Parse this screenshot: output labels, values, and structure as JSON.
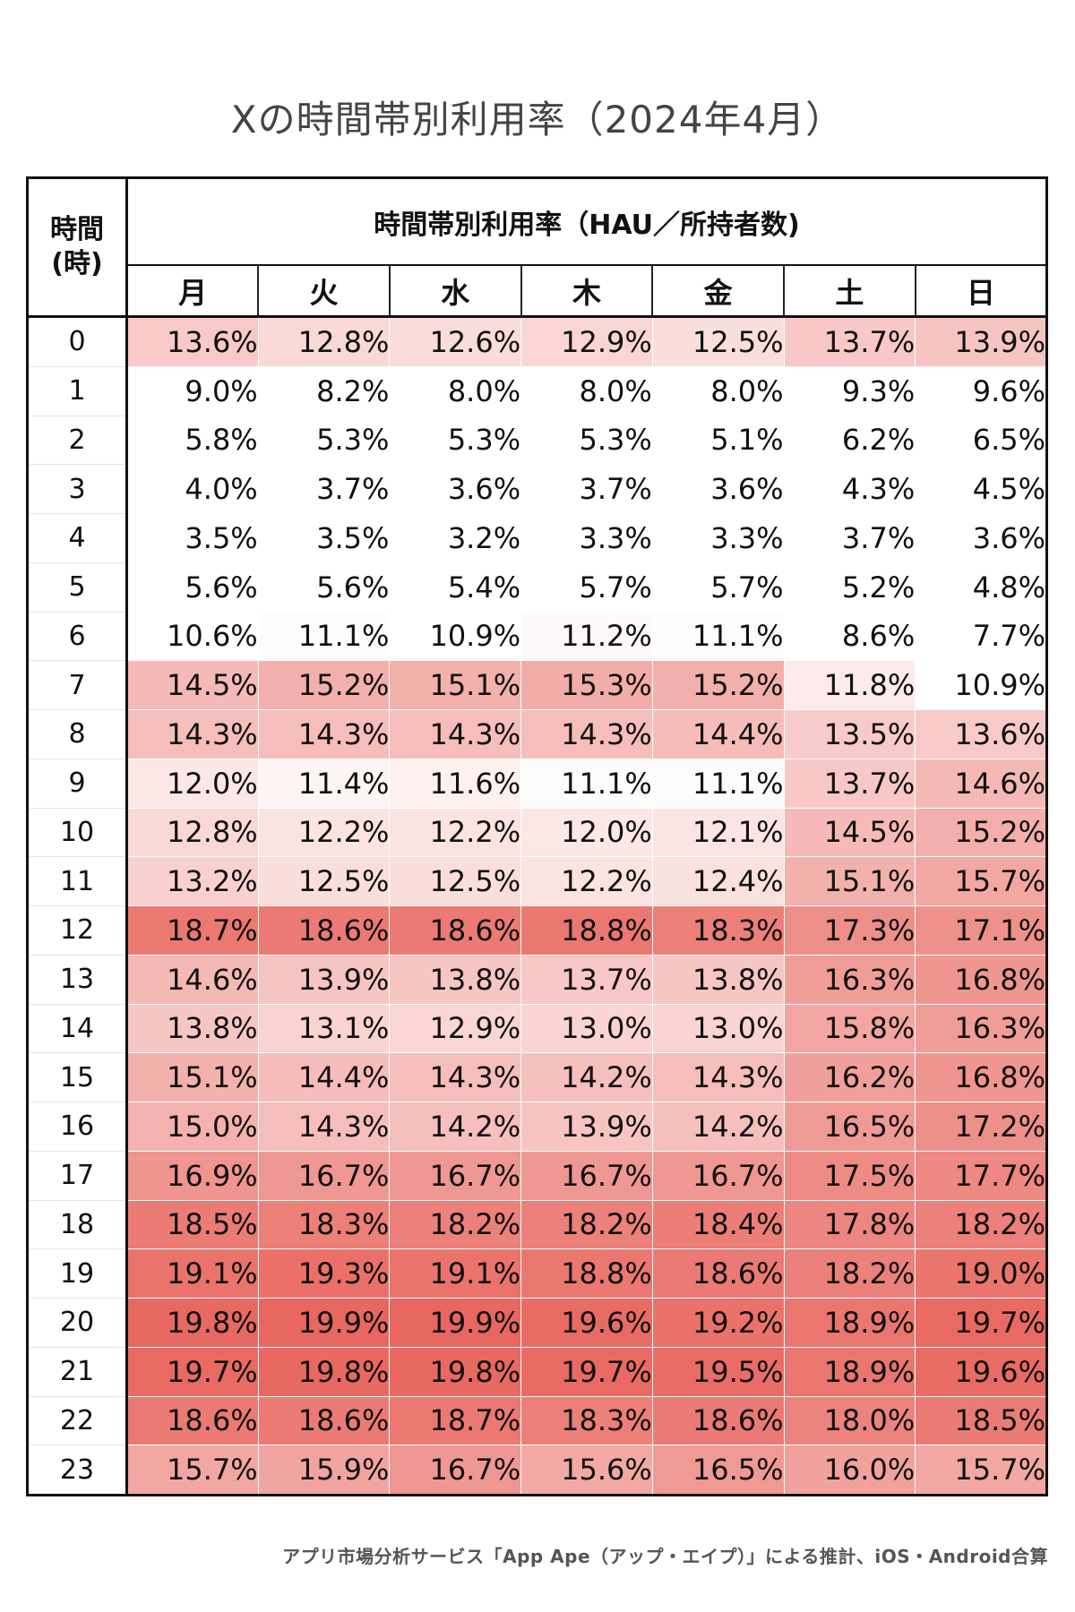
{
  "chart_data": {
    "type": "heatmap",
    "title": "Xの時間帯別利用率（2024年4月）",
    "row_header": "時間\n(時)",
    "column_group_header": "時間帯別利用率（HAU／所持者数)",
    "columns": [
      "月",
      "火",
      "水",
      "木",
      "金",
      "土",
      "日"
    ],
    "rows": [
      "0",
      "1",
      "2",
      "3",
      "4",
      "5",
      "6",
      "7",
      "8",
      "9",
      "10",
      "11",
      "12",
      "13",
      "14",
      "15",
      "16",
      "17",
      "18",
      "19",
      "20",
      "21",
      "22",
      "23"
    ],
    "unit": "%",
    "values": [
      [
        13.6,
        12.8,
        12.6,
        12.9,
        12.5,
        13.7,
        13.9
      ],
      [
        9.0,
        8.2,
        8.0,
        8.0,
        8.0,
        9.3,
        9.6
      ],
      [
        5.8,
        5.3,
        5.3,
        5.3,
        5.1,
        6.2,
        6.5
      ],
      [
        4.0,
        3.7,
        3.6,
        3.7,
        3.6,
        4.3,
        4.5
      ],
      [
        3.5,
        3.5,
        3.2,
        3.3,
        3.3,
        3.7,
        3.6
      ],
      [
        5.6,
        5.6,
        5.4,
        5.7,
        5.7,
        5.2,
        4.8
      ],
      [
        10.6,
        11.1,
        10.9,
        11.2,
        11.1,
        8.6,
        7.7
      ],
      [
        14.5,
        15.2,
        15.1,
        15.3,
        15.2,
        11.8,
        10.9
      ],
      [
        14.3,
        14.3,
        14.3,
        14.3,
        14.4,
        13.5,
        13.6
      ],
      [
        12.0,
        11.4,
        11.6,
        11.1,
        11.1,
        13.7,
        14.6
      ],
      [
        12.8,
        12.2,
        12.2,
        12.0,
        12.1,
        14.5,
        15.2
      ],
      [
        13.2,
        12.5,
        12.5,
        12.2,
        12.4,
        15.1,
        15.7
      ],
      [
        18.7,
        18.6,
        18.6,
        18.8,
        18.3,
        17.3,
        17.1
      ],
      [
        14.6,
        13.9,
        13.8,
        13.7,
        13.8,
        16.3,
        16.8
      ],
      [
        13.8,
        13.1,
        12.9,
        13.0,
        13.0,
        15.8,
        16.3
      ],
      [
        15.1,
        14.4,
        14.3,
        14.2,
        14.3,
        16.2,
        16.8
      ],
      [
        15.0,
        14.3,
        14.2,
        13.9,
        14.2,
        16.5,
        17.2
      ],
      [
        16.9,
        16.7,
        16.7,
        16.7,
        16.7,
        17.5,
        17.7
      ],
      [
        18.5,
        18.3,
        18.2,
        18.2,
        18.4,
        17.8,
        18.2
      ],
      [
        19.1,
        19.3,
        19.1,
        18.8,
        18.6,
        18.2,
        19.0
      ],
      [
        19.8,
        19.9,
        19.9,
        19.6,
        19.2,
        18.9,
        19.7
      ],
      [
        19.7,
        19.8,
        19.8,
        19.7,
        19.5,
        18.9,
        19.6
      ],
      [
        18.6,
        18.6,
        18.7,
        18.3,
        18.6,
        18.0,
        18.5
      ],
      [
        15.7,
        15.9,
        16.7,
        15.6,
        16.5,
        16.0,
        15.7
      ]
    ],
    "color_low": "#ffffff",
    "color_high": "#e8665e"
  },
  "footnote": "アプリ市場分析サービス「App Ape（アップ・エイプ）」による推計、iOS・Android合算"
}
